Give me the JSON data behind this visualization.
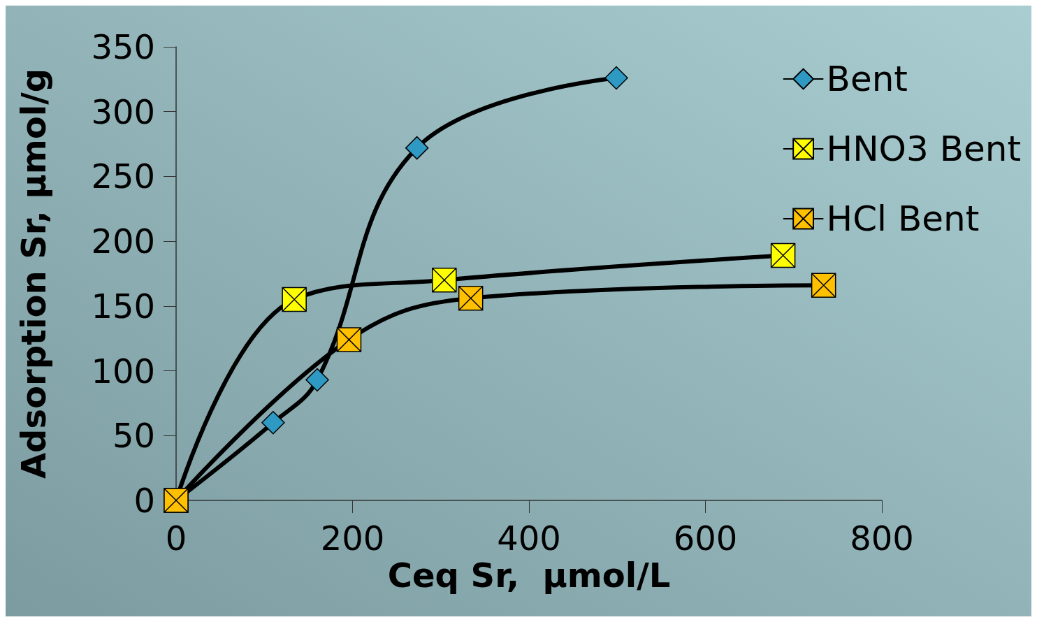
{
  "chart_data": {
    "type": "line",
    "xlabel": "Ceq Sr,  µmol/L",
    "ylabel": "Adsorption Sr, µmol/g",
    "xlim": [
      0,
      800
    ],
    "xticks": [
      0,
      200,
      400,
      600,
      800
    ],
    "ylim": [
      0,
      350
    ],
    "yticks": [
      0,
      50,
      100,
      150,
      200,
      250,
      300,
      350
    ],
    "grid": false,
    "legend": "top right",
    "line_style": "solid",
    "series": [
      {
        "name": "Bent",
        "color": "#2e9ac4",
        "marker": "diamond",
        "x": [
          0,
          110,
          160,
          273,
          499
        ],
        "values": [
          0,
          60,
          93,
          272,
          326
        ]
      },
      {
        "name": "HNO3 Bent",
        "color": "#ffff00",
        "marker": "cross",
        "x": [
          0,
          134,
          304,
          688
        ],
        "values": [
          0,
          155,
          170,
          189
        ]
      },
      {
        "name": "HCl Bent",
        "color": "#ffc000",
        "marker": "cross",
        "x": [
          0,
          196,
          334,
          734
        ],
        "values": [
          0,
          124,
          156,
          166
        ]
      }
    ]
  }
}
